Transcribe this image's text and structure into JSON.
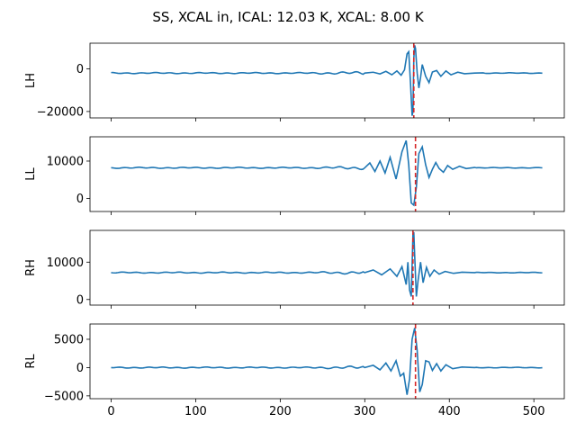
{
  "chart_data": {
    "type": "line",
    "title": "SS, XCAL in, ICAL: 12.03 K, XCAL: 8.00 K",
    "shared_x": true,
    "xlim": [
      -25,
      536
    ],
    "x_ticks": [
      0,
      100,
      200,
      300,
      400,
      500
    ],
    "series_color": "#1f77b4",
    "marker_color": "#d62728",
    "marker_style": "dashed vertical line",
    "panels": [
      {
        "ylabel": "LH",
        "ylim": [
          -23000,
          12000
        ],
        "y_ticks": [
          -20000,
          0
        ],
        "y_tick_labels": [
          "−20000",
          "0"
        ],
        "baseline": -2000,
        "peak_x": 357,
        "marker_x": 358,
        "wave_points": [
          [
            300,
            -2000
          ],
          [
            310,
            -1600
          ],
          [
            318,
            -2400
          ],
          [
            325,
            -1200
          ],
          [
            332,
            -2800
          ],
          [
            338,
            -1000
          ],
          [
            343,
            -3000
          ],
          [
            347,
            -500
          ],
          [
            350,
            7000
          ],
          [
            352,
            8000
          ],
          [
            354,
            -6000
          ],
          [
            356,
            -22000
          ],
          [
            357,
            -20000
          ],
          [
            358,
            5000
          ],
          [
            359,
            11000
          ],
          [
            360,
            9500
          ],
          [
            362,
            -2000
          ],
          [
            364,
            -9000
          ],
          [
            366,
            -4000
          ],
          [
            368,
            2000
          ],
          [
            372,
            -3500
          ],
          [
            376,
            -6500
          ],
          [
            380,
            -1500
          ],
          [
            385,
            -800
          ],
          [
            390,
            -3500
          ],
          [
            396,
            -1000
          ],
          [
            402,
            -2800
          ],
          [
            410,
            -1600
          ],
          [
            418,
            -2300
          ],
          [
            430,
            -2000
          ],
          [
            440,
            -1900
          ]
        ]
      },
      {
        "ylabel": "LL",
        "ylim": [
          -3500,
          16500
        ],
        "y_ticks": [
          0,
          10000
        ],
        "y_tick_labels": [
          "0",
          "10000"
        ],
        "baseline": 8200,
        "peak_x": 355,
        "marker_x": 360,
        "wave_points": [
          [
            300,
            8200
          ],
          [
            306,
            9500
          ],
          [
            312,
            7200
          ],
          [
            318,
            10000
          ],
          [
            324,
            6800
          ],
          [
            330,
            11000
          ],
          [
            337,
            5200
          ],
          [
            344,
            12500
          ],
          [
            349,
            15500
          ],
          [
            352,
            9000
          ],
          [
            355,
            -1200
          ],
          [
            358,
            -1800
          ],
          [
            361,
            3000
          ],
          [
            364,
            12000
          ],
          [
            368,
            13800
          ],
          [
            372,
            9000
          ],
          [
            376,
            5600
          ],
          [
            380,
            7800
          ],
          [
            384,
            9600
          ],
          [
            388,
            8000
          ],
          [
            393,
            7000
          ],
          [
            398,
            8800
          ],
          [
            404,
            7800
          ],
          [
            412,
            8600
          ],
          [
            420,
            8000
          ],
          [
            430,
            8300
          ]
        ]
      },
      {
        "ylabel": "RH",
        "ylim": [
          -1500,
          18500
        ],
        "y_ticks": [
          0,
          10000
        ],
        "y_tick_labels": [
          "0",
          "10000"
        ],
        "baseline": 7200,
        "peak_x": 358,
        "marker_x": 357,
        "wave_points": [
          [
            300,
            7200
          ],
          [
            310,
            7900
          ],
          [
            320,
            6600
          ],
          [
            330,
            8200
          ],
          [
            338,
            6200
          ],
          [
            344,
            8800
          ],
          [
            349,
            4000
          ],
          [
            351,
            10000
          ],
          [
            353,
            2500
          ],
          [
            355,
            800
          ],
          [
            357,
            17500
          ],
          [
            358,
            18000
          ],
          [
            359,
            12000
          ],
          [
            361,
            800
          ],
          [
            363,
            5000
          ],
          [
            366,
            10000
          ],
          [
            369,
            4500
          ],
          [
            373,
            8600
          ],
          [
            377,
            6200
          ],
          [
            382,
            7900
          ],
          [
            388,
            6800
          ],
          [
            395,
            7500
          ],
          [
            405,
            7000
          ],
          [
            415,
            7300
          ],
          [
            430,
            7200
          ]
        ]
      },
      {
        "ylabel": "RL",
        "ylim": [
          -5500,
          7700
        ],
        "y_ticks": [
          -5000,
          0,
          5000
        ],
        "y_tick_labels": [
          "−5000",
          "0",
          "5000"
        ],
        "baseline": 0,
        "peak_x": 358,
        "marker_x": 360,
        "wave_points": [
          [
            300,
            0
          ],
          [
            310,
            400
          ],
          [
            318,
            -400
          ],
          [
            325,
            800
          ],
          [
            331,
            -600
          ],
          [
            337,
            1200
          ],
          [
            342,
            -1500
          ],
          [
            346,
            -1000
          ],
          [
            350,
            -4800
          ],
          [
            353,
            -2000
          ],
          [
            356,
            5000
          ],
          [
            359,
            7000
          ],
          [
            362,
            3000
          ],
          [
            365,
            -4300
          ],
          [
            368,
            -3000
          ],
          [
            372,
            1200
          ],
          [
            376,
            1000
          ],
          [
            380,
            -500
          ],
          [
            385,
            700
          ],
          [
            390,
            -600
          ],
          [
            396,
            500
          ],
          [
            404,
            -200
          ],
          [
            415,
            100
          ],
          [
            430,
            0
          ]
        ]
      }
    ]
  }
}
